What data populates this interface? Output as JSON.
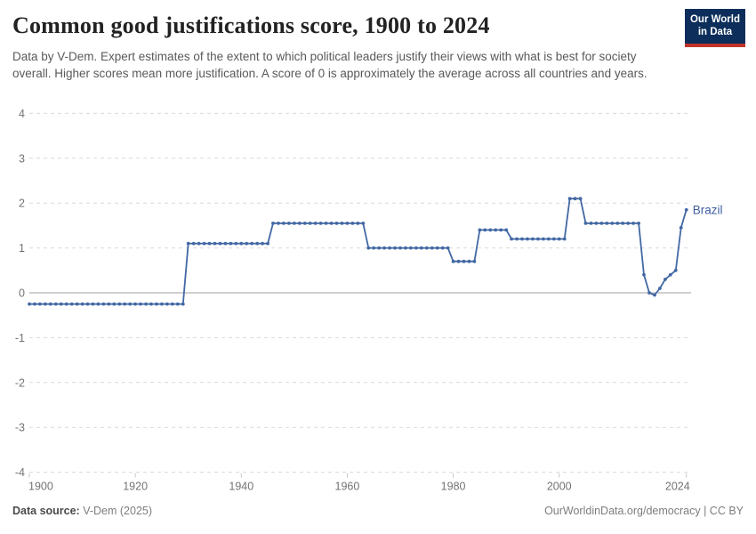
{
  "header": {
    "title": "Common good justifications score, 1900 to 2024",
    "subtitle": "Data by V-Dem. Expert estimates of the extent to which political leaders justify their views with what is best for society overall. Higher scores mean more justification. A score of 0 is approximately the average across all countries and years.",
    "logo": {
      "line1": "Our World",
      "line2": "in Data"
    }
  },
  "footer": {
    "source_label": "Data source:",
    "source_value": " V-Dem (2025)",
    "credit": "OurWorldinData.org/democracy | CC BY"
  },
  "colors": {
    "line": "#4268a4",
    "end_label": "#3d5fa0",
    "grid": "#d9d9d9",
    "zero_line": "#a1a1a1",
    "tick_text": "#737373",
    "tick_mark": "#c9c9c9",
    "logo_bg": "#0d2e5a",
    "logo_red": "#c0342b"
  },
  "chart_data": {
    "type": "line",
    "title": "Common good justifications score, 1900 to 2024",
    "xlabel": "",
    "ylabel": "",
    "grid": "horizontal-dashed",
    "legend_position": "end-of-line-label",
    "xlim": [
      1900,
      2024
    ],
    "ylim": [
      -4,
      4
    ],
    "yticks": [
      4,
      3,
      2,
      1,
      0,
      -1,
      -2,
      -3,
      -4
    ],
    "xticks": [
      1900,
      1920,
      1940,
      1960,
      1980,
      2000,
      2024
    ],
    "x_min": 1900,
    "x_step": 1,
    "series": [
      {
        "name": "Brazil",
        "years": [
          1900,
          1901,
          1902,
          1903,
          1904,
          1905,
          1906,
          1907,
          1908,
          1909,
          1910,
          1911,
          1912,
          1913,
          1914,
          1915,
          1916,
          1917,
          1918,
          1919,
          1920,
          1921,
          1922,
          1923,
          1924,
          1925,
          1926,
          1927,
          1928,
          1929,
          1930,
          1931,
          1932,
          1933,
          1934,
          1935,
          1936,
          1937,
          1938,
          1939,
          1940,
          1941,
          1942,
          1943,
          1944,
          1945,
          1946,
          1947,
          1948,
          1949,
          1950,
          1951,
          1952,
          1953,
          1954,
          1955,
          1956,
          1957,
          1958,
          1959,
          1960,
          1961,
          1962,
          1963,
          1964,
          1965,
          1966,
          1967,
          1968,
          1969,
          1970,
          1971,
          1972,
          1973,
          1974,
          1975,
          1976,
          1977,
          1978,
          1979,
          1980,
          1981,
          1982,
          1983,
          1984,
          1985,
          1986,
          1987,
          1988,
          1989,
          1990,
          1991,
          1992,
          1993,
          1994,
          1995,
          1996,
          1997,
          1998,
          1999,
          2000,
          2001,
          2002,
          2003,
          2004,
          2005,
          2006,
          2007,
          2008,
          2009,
          2010,
          2011,
          2012,
          2013,
          2014,
          2015,
          2016,
          2017,
          2018,
          2019,
          2020,
          2021,
          2022,
          2023,
          2024
        ],
        "values": [
          -0.25,
          -0.25,
          -0.25,
          -0.25,
          -0.25,
          -0.25,
          -0.25,
          -0.25,
          -0.25,
          -0.25,
          -0.25,
          -0.25,
          -0.25,
          -0.25,
          -0.25,
          -0.25,
          -0.25,
          -0.25,
          -0.25,
          -0.25,
          -0.25,
          -0.25,
          -0.25,
          -0.25,
          -0.25,
          -0.25,
          -0.25,
          -0.25,
          -0.25,
          -0.25,
          1.1,
          1.1,
          1.1,
          1.1,
          1.1,
          1.1,
          1.1,
          1.1,
          1.1,
          1.1,
          1.1,
          1.1,
          1.1,
          1.1,
          1.1,
          1.1,
          1.55,
          1.55,
          1.55,
          1.55,
          1.55,
          1.55,
          1.55,
          1.55,
          1.55,
          1.55,
          1.55,
          1.55,
          1.55,
          1.55,
          1.55,
          1.55,
          1.55,
          1.55,
          1.0,
          1.0,
          1.0,
          1.0,
          1.0,
          1.0,
          1.0,
          1.0,
          1.0,
          1.0,
          1.0,
          1.0,
          1.0,
          1.0,
          1.0,
          1.0,
          0.7,
          0.7,
          0.7,
          0.7,
          0.7,
          1.4,
          1.4,
          1.4,
          1.4,
          1.4,
          1.4,
          1.2,
          1.2,
          1.2,
          1.2,
          1.2,
          1.2,
          1.2,
          1.2,
          1.2,
          1.2,
          1.2,
          2.1,
          2.1,
          2.1,
          1.55,
          1.55,
          1.55,
          1.55,
          1.55,
          1.55,
          1.55,
          1.55,
          1.55,
          1.55,
          1.55,
          0.4,
          0.0,
          -0.05,
          0.1,
          0.3,
          0.4,
          0.5,
          1.45,
          1.85
        ]
      }
    ]
  }
}
